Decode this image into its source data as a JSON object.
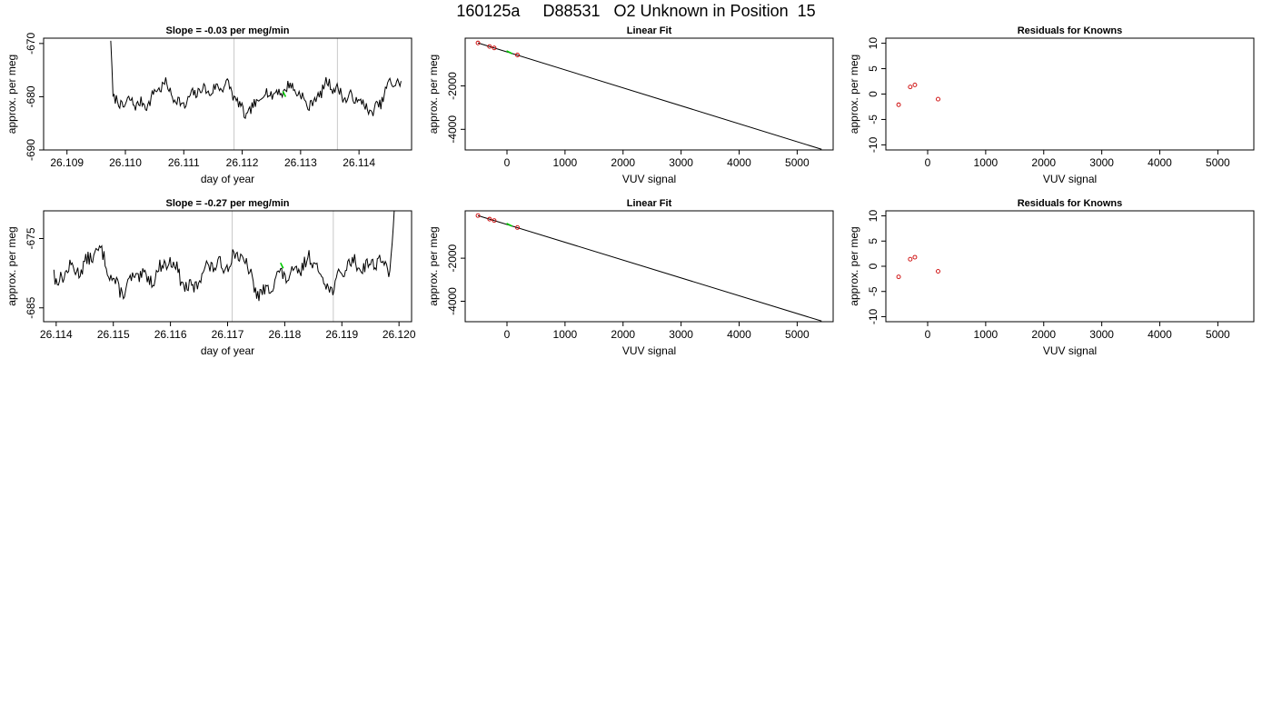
{
  "page": {
    "title": "160125a     D88531   O2 Unknown in Position  15"
  },
  "colors": {
    "trace": "#000000",
    "marker": "#00cc00",
    "known_points": "#cc0000",
    "vline": "#c8c8c8",
    "frame": "#000000"
  },
  "chart_data": [
    {
      "type": "line",
      "title": "Slope =  -0.03  per meg/min",
      "xlabel": "day of year",
      "ylabel": "approx. per meg",
      "xlim": [
        26.1086,
        26.1149
      ],
      "ylim": [
        -690,
        -669
      ],
      "xticks": [
        26.109,
        26.11,
        26.111,
        26.112,
        26.113,
        26.114
      ],
      "xtick_labels": [
        "26.109",
        "26.110",
        "26.111",
        "26.112",
        "26.113",
        "26.114"
      ],
      "yticks": [
        -690,
        -680,
        -670
      ],
      "ytick_labels": [
        "-690",
        "-680",
        "-670"
      ],
      "vlines": [
        26.11186,
        26.11363
      ],
      "marker": {
        "x": 26.11272,
        "y": -679.5
      },
      "trace": {
        "x_start": 26.10975,
        "x_end": 26.11472,
        "n": 260,
        "start_y": -669.5,
        "drop_fraction": 0.008,
        "base": -679.8,
        "seed": 7,
        "wave": [
          [
            1.6,
            53
          ],
          [
            1.0,
            29
          ],
          [
            0.9,
            97
          ],
          [
            0.6,
            11
          ]
        ]
      }
    },
    {
      "type": "scatter",
      "title": "Linear Fit",
      "xlabel": "VUV signal",
      "ylabel": "approx. per meg",
      "xlim": [
        -720,
        5620
      ],
      "ylim": [
        -4950,
        200
      ],
      "xticks": [
        0,
        1000,
        2000,
        3000,
        4000,
        5000
      ],
      "xtick_labels": [
        "0",
        "1000",
        "2000",
        "3000",
        "4000",
        "5000"
      ],
      "yticks": [
        -4000,
        -2000
      ],
      "ytick_labels": [
        "-4000",
        "-2000"
      ],
      "fit_line": {
        "x": [
          -500,
          5420
        ],
        "y": [
          -20,
          -4920
        ]
      },
      "known_points": {
        "x": [
          -500,
          -300,
          -220,
          180
        ],
        "y": [
          -20,
          -185,
          -250,
          -575
        ]
      },
      "unknown_point": {
        "x": 40,
        "y": -450
      }
    },
    {
      "type": "scatter",
      "title": "Residuals for Knowns",
      "xlabel": "VUV signal",
      "ylabel": "approx. per meg",
      "xlim": [
        -720,
        5620
      ],
      "ylim": [
        -11,
        11
      ],
      "xticks": [
        0,
        1000,
        2000,
        3000,
        4000,
        5000
      ],
      "xtick_labels": [
        "0",
        "1000",
        "2000",
        "3000",
        "4000",
        "5000"
      ],
      "yticks": [
        -10,
        -5,
        0,
        5,
        10
      ],
      "ytick_labels": [
        "-10",
        "-5",
        "0",
        "5",
        "10"
      ],
      "points": {
        "x": [
          -500,
          -300,
          -220,
          180
        ],
        "y": [
          -2.1,
          1.4,
          1.8,
          -1.0
        ]
      }
    },
    {
      "type": "line",
      "title": "Slope =  -0.27  per meg/min",
      "xlabel": "day of year",
      "ylabel": "approx. per meg",
      "xlim": [
        26.11378,
        26.12022
      ],
      "ylim": [
        -687,
        -671
      ],
      "xticks": [
        26.114,
        26.115,
        26.116,
        26.117,
        26.118,
        26.119,
        26.12
      ],
      "xtick_labels": [
        "26.114",
        "26.115",
        "26.116",
        "26.117",
        "26.118",
        "26.119",
        "26.120"
      ],
      "yticks": [
        -685,
        -675
      ],
      "ytick_labels": [
        "-685",
        "-675"
      ],
      "vlines": [
        26.11708,
        26.11885
      ],
      "marker": {
        "x": 26.11795,
        "y": -678.9
      },
      "trace": {
        "x_start": 26.11396,
        "x_end": 26.11992,
        "n": 300,
        "start_y": -679.5,
        "rise_fraction": 0.015,
        "end_y": -670.5,
        "base": -680.0,
        "seed": 13,
        "wave": [
          [
            1.7,
            61
          ],
          [
            1.1,
            31
          ],
          [
            0.8,
            113
          ],
          [
            0.5,
            13
          ]
        ]
      }
    },
    {
      "type": "scatter",
      "title": "Linear Fit",
      "xlabel": "VUV signal",
      "ylabel": "approx. per meg",
      "xlim": [
        -720,
        5620
      ],
      "ylim": [
        -4950,
        200
      ],
      "xticks": [
        0,
        1000,
        2000,
        3000,
        4000,
        5000
      ],
      "xtick_labels": [
        "0",
        "1000",
        "2000",
        "3000",
        "4000",
        "5000"
      ],
      "yticks": [
        -4000,
        -2000
      ],
      "ytick_labels": [
        "-4000",
        "-2000"
      ],
      "fit_line": {
        "x": [
          -500,
          5420
        ],
        "y": [
          -20,
          -4920
        ]
      },
      "known_points": {
        "x": [
          -500,
          -300,
          -220,
          180
        ],
        "y": [
          -20,
          -185,
          -250,
          -575
        ]
      },
      "unknown_point": {
        "x": 40,
        "y": -450
      }
    },
    {
      "type": "scatter",
      "title": "Residuals for Knowns",
      "xlabel": "VUV signal",
      "ylabel": "approx. per meg",
      "xlim": [
        -720,
        5620
      ],
      "ylim": [
        -11,
        11
      ],
      "xticks": [
        0,
        1000,
        2000,
        3000,
        4000,
        5000
      ],
      "xtick_labels": [
        "0",
        "1000",
        "2000",
        "3000",
        "4000",
        "5000"
      ],
      "yticks": [
        -10,
        -5,
        0,
        5,
        10
      ],
      "ytick_labels": [
        "-10",
        "-5",
        "0",
        "5",
        "10"
      ],
      "points": {
        "x": [
          -500,
          -300,
          -220,
          180
        ],
        "y": [
          -2.1,
          1.4,
          1.8,
          -1.0
        ]
      }
    }
  ]
}
